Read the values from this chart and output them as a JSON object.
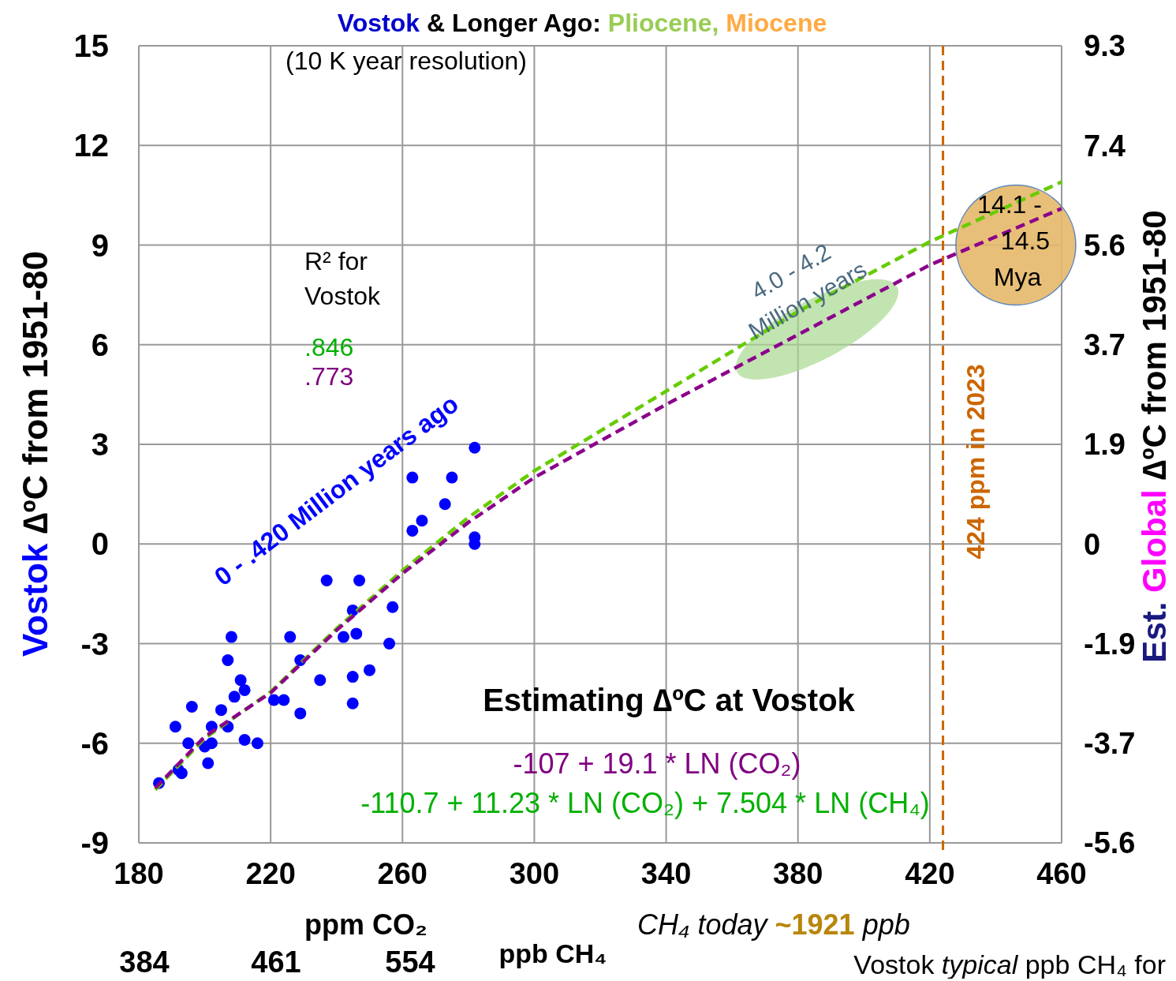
{
  "chart_data": {
    "type": "scatter",
    "title": "Vostok & Longer Ago: Pliocene, Miocene",
    "subtitle": "(10 K year resolution)",
    "xlabel": "ppm CO₂",
    "ylabel": "Vostok ∆ºC from 1951-80",
    "y2label": "Est. Global ∆ºC from 1951-80",
    "xlim": [
      180,
      460
    ],
    "xticks": [
      180,
      220,
      260,
      300,
      340,
      380,
      420,
      460
    ],
    "ylim": [
      -9,
      15
    ],
    "yticks": [
      -9,
      -6,
      -3,
      0,
      3,
      6,
      9,
      12,
      15
    ],
    "y2lim": [
      -5.58,
      9.3
    ],
    "y2ticks": [
      {
        "value": -5.58,
        "label": "-5.6"
      },
      {
        "value": -3.72,
        "label": "-3.7"
      },
      {
        "value": -1.86,
        "label": "-1.9"
      },
      0,
      {
        "value": 1.86,
        "label": "1.9"
      },
      {
        "value": 3.72,
        "label": "3.7"
      },
      {
        "value": 5.58,
        "label": "5.6"
      },
      {
        "value": 7.44,
        "label": "7.4"
      },
      9.3
    ],
    "grid": true,
    "series": [
      {
        "type": "scatter",
        "color": "#0000ff",
        "marker": "circle",
        "x": [
          281.9,
          263,
          275,
          272.9,
          265.9,
          263,
          281.9,
          281.9,
          237,
          246.9,
          244.9,
          257,
          208.1,
          225.9,
          242.1,
          246,
          256,
          207,
          229,
          210.9,
          212.1,
          209,
          235,
          244.9,
          250,
          244.9,
          221,
          224,
          229,
          196.1,
          205,
          191.1,
          202.1,
          207,
          195,
          200,
          202.1,
          212.1,
          216,
          201,
          192,
          193,
          186.1
        ],
        "values": [
          2.9,
          2.0,
          2.0,
          1.2,
          0.7,
          0.4,
          0.2,
          0.0,
          -1.1,
          -1.1,
          -2.0,
          -1.9,
          -2.8,
          -2.8,
          -2.8,
          -2.7,
          -3.0,
          -3.5,
          -3.5,
          -4.1,
          -4.4,
          -4.6,
          -4.1,
          -4.0,
          -3.8,
          -4.8,
          -4.7,
          -4.7,
          -5.1,
          -4.9,
          -5.0,
          -5.5,
          -5.5,
          -5.5,
          -6.0,
          -6.1,
          -6.0,
          -5.9,
          -6.0,
          -6.6,
          -6.8,
          -6.9,
          -7.2
        ]
      },
      {
        "type": "line",
        "color": "#66cc00",
        "line_style": "dashed",
        "x": [
          185,
          200,
          220,
          240,
          260,
          280,
          300,
          340,
          380,
          420,
          460
        ],
        "values": [
          -7.4,
          -5.85,
          -4.45,
          -2.55,
          -0.8,
          0.8,
          2.2,
          4.6,
          7.0,
          9.1,
          10.9
        ]
      },
      {
        "type": "line",
        "color": "#8b008b",
        "line_style": "dashed",
        "x": [
          185,
          200,
          220,
          240,
          260,
          280,
          300,
          340,
          380,
          420,
          460
        ],
        "values": [
          -7.35,
          -5.8,
          -4.48,
          -2.6,
          -0.89,
          0.65,
          2.0,
          4.2,
          6.3,
          8.4,
          10.1
        ]
      }
    ],
    "ref_lines": [
      {
        "axis": "x",
        "value": 424,
        "label": "424 ppm in 2023",
        "color": "#cc6600",
        "line_style": "dashed"
      }
    ],
    "annotations": [
      "R² for Vostok",
      ".846",
      ".773",
      "0 - .420 Million years ago",
      "4.0 - 4.2 Million years",
      "14.1 - 14.5 Mya",
      "Estimating ∆ºC at Vostok",
      "-107 + 19.1 * LN (CO₂)",
      "-110.7 + 11.23 * LN (CO₂) + 7.504 * LN (CH₄)",
      "CH₄ today ~1921 ppb",
      "Vostok typical ppb CH₄ for",
      "384",
      "461",
      "554",
      "ppb CH₄"
    ]
  }
}
